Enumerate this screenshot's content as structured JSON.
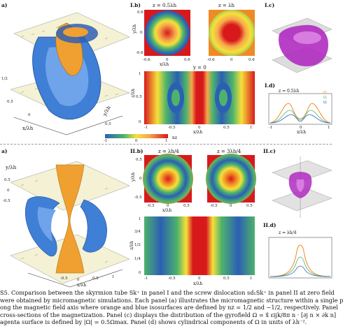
{
  "panel_I": {
    "a": {
      "label": "a)",
      "axis_x": "x/λh",
      "axis_y": "y/λh",
      "ticks": [
        "0.5",
        "0",
        "-0.5",
        "0.5",
        "1/2"
      ]
    },
    "b": {
      "label": "I.b)",
      "title_left": "z = 0.5λh",
      "title_right": "z = λh",
      "slice_title": "y = 0",
      "ticks_top": [
        "-0.6",
        "0",
        "0.6",
        "-0.6",
        "0",
        "0.6"
      ],
      "y_top": [
        "0.6",
        "0",
        "-0.6"
      ],
      "axis_x_top": "x/λh",
      "axis_y_top": "y/λh",
      "ticks_bottom": [
        "-1",
        "-0.5",
        "0",
        "0.5",
        "1"
      ],
      "y_bottom": [
        "1",
        "0.5",
        "0"
      ],
      "axis_x_bottom": "x/λh",
      "axis_y_bottom": "z/λh",
      "colorbar_ticks": [
        "-1",
        "0",
        "1"
      ],
      "colorbar_label": "nz"
    },
    "c": {
      "label": "I.c)"
    },
    "d": {
      "label": "I.d)",
      "title": "z = 0.5λh",
      "ticks": [
        "-1",
        "0",
        "1"
      ],
      "axis_x": "x/λh",
      "legend": [
        "Ω",
        "Ω",
        "Ω"
      ]
    }
  },
  "panel_II": {
    "a": {
      "label": "a)",
      "axis_y": "y/λh",
      "ticks": [
        "0.5",
        "0",
        "-0.5",
        "-0.5",
        "0",
        "0.5",
        "1"
      ],
      "axis_x": "x/λh"
    },
    "b": {
      "label": "II.b)",
      "title_left": "z = λh/4",
      "title_right": "z = 3λh/4",
      "ticks_top": [
        "-0.5",
        "0",
        "0.5",
        "-0.5",
        "0",
        "0.5"
      ],
      "y_top": [
        "0.5",
        "0",
        "-0.5"
      ],
      "axis_x_top": "x/λh",
      "axis_y_top": "y/λh",
      "y_bottom": [
        "1",
        "3/4",
        "1/2",
        "1/4",
        "0"
      ],
      "ticks_bottom": [
        "-1",
        "-0.5",
        "0",
        "0.5",
        "1"
      ],
      "axis_x_bottom": "x/λh",
      "axis_y_bottom": "z/λh"
    },
    "c": {
      "label": "II.c)"
    },
    "d": {
      "label": "II.d)",
      "title": "z = λh/4"
    }
  },
  "caption": {
    "line1": "S5. Comparison between the skyrmion tube Sk⁺ in panel I and the screw dislocation sd₁Sk⁺ in panel II at zero field",
    "line2": "were obtained by micromagnetic simulations. Each panel (a) illustrates the micromagnetic structure within a single p",
    "line3": "ong the magnetic field axis where orange and blue isosurfaces are defined by nz = 1/2 and −1/2, respectively. Panel",
    "line4": "cross-sections of the magnetization. Panel (c) displays the distribution of the gyrofield Ω = x̂ εijk/8π n · [∂j n × ∂k n]",
    "line5": "agenta surface is defined by |Ω| = 0.5Ωmax. Panel (d) shows cylindrical components of Ω in units of λh⁻²."
  },
  "colors": {
    "red": "#d7191c",
    "blue": "#2b5fb4",
    "yellow": "#f7e03a",
    "green": "#4db36b",
    "orange": "#f08a24",
    "magenta": "#b02bc0",
    "iso_blue": "#3f7fd6",
    "iso_orange": "#f0a030"
  }
}
